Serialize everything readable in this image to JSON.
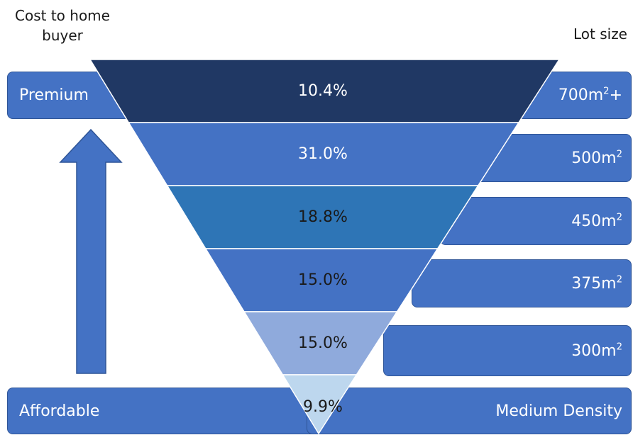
{
  "header": {
    "left": "Cost to home\nbuyer",
    "right": "Lot size"
  },
  "labels": {
    "premium": "Premium",
    "affordable": "Affordable",
    "medium": "Medium Density"
  },
  "lots": [
    {
      "text": "700m",
      "sup": "2",
      "suffix": "+"
    },
    {
      "text": "500m",
      "sup": "2",
      "suffix": ""
    },
    {
      "text": "450m",
      "sup": "2",
      "suffix": ""
    },
    {
      "text": "375m",
      "sup": "2",
      "suffix": ""
    },
    {
      "text": "300m",
      "sup": "2",
      "suffix": ""
    }
  ],
  "tiers": [
    {
      "value": "10.4%",
      "color": "#203864",
      "text_color": "#ffffff"
    },
    {
      "value": "31.0%",
      "color": "#4472c4",
      "text_color": "#ffffff"
    },
    {
      "value": "18.8%",
      "color": "#2e75b6",
      "text_color": "#1a1a1a"
    },
    {
      "value": "15.0%",
      "color": "#4472c4",
      "text_color": "#1a1a1a"
    },
    {
      "value": "15.0%",
      "color": "#8faadc",
      "text_color": "#1a1a1a"
    },
    {
      "value": "9.9%",
      "color": "#bdd7ee",
      "text_color": "#1a1a1a"
    }
  ],
  "colors": {
    "box": "#4472c4",
    "arrow": "#4472c4"
  }
}
